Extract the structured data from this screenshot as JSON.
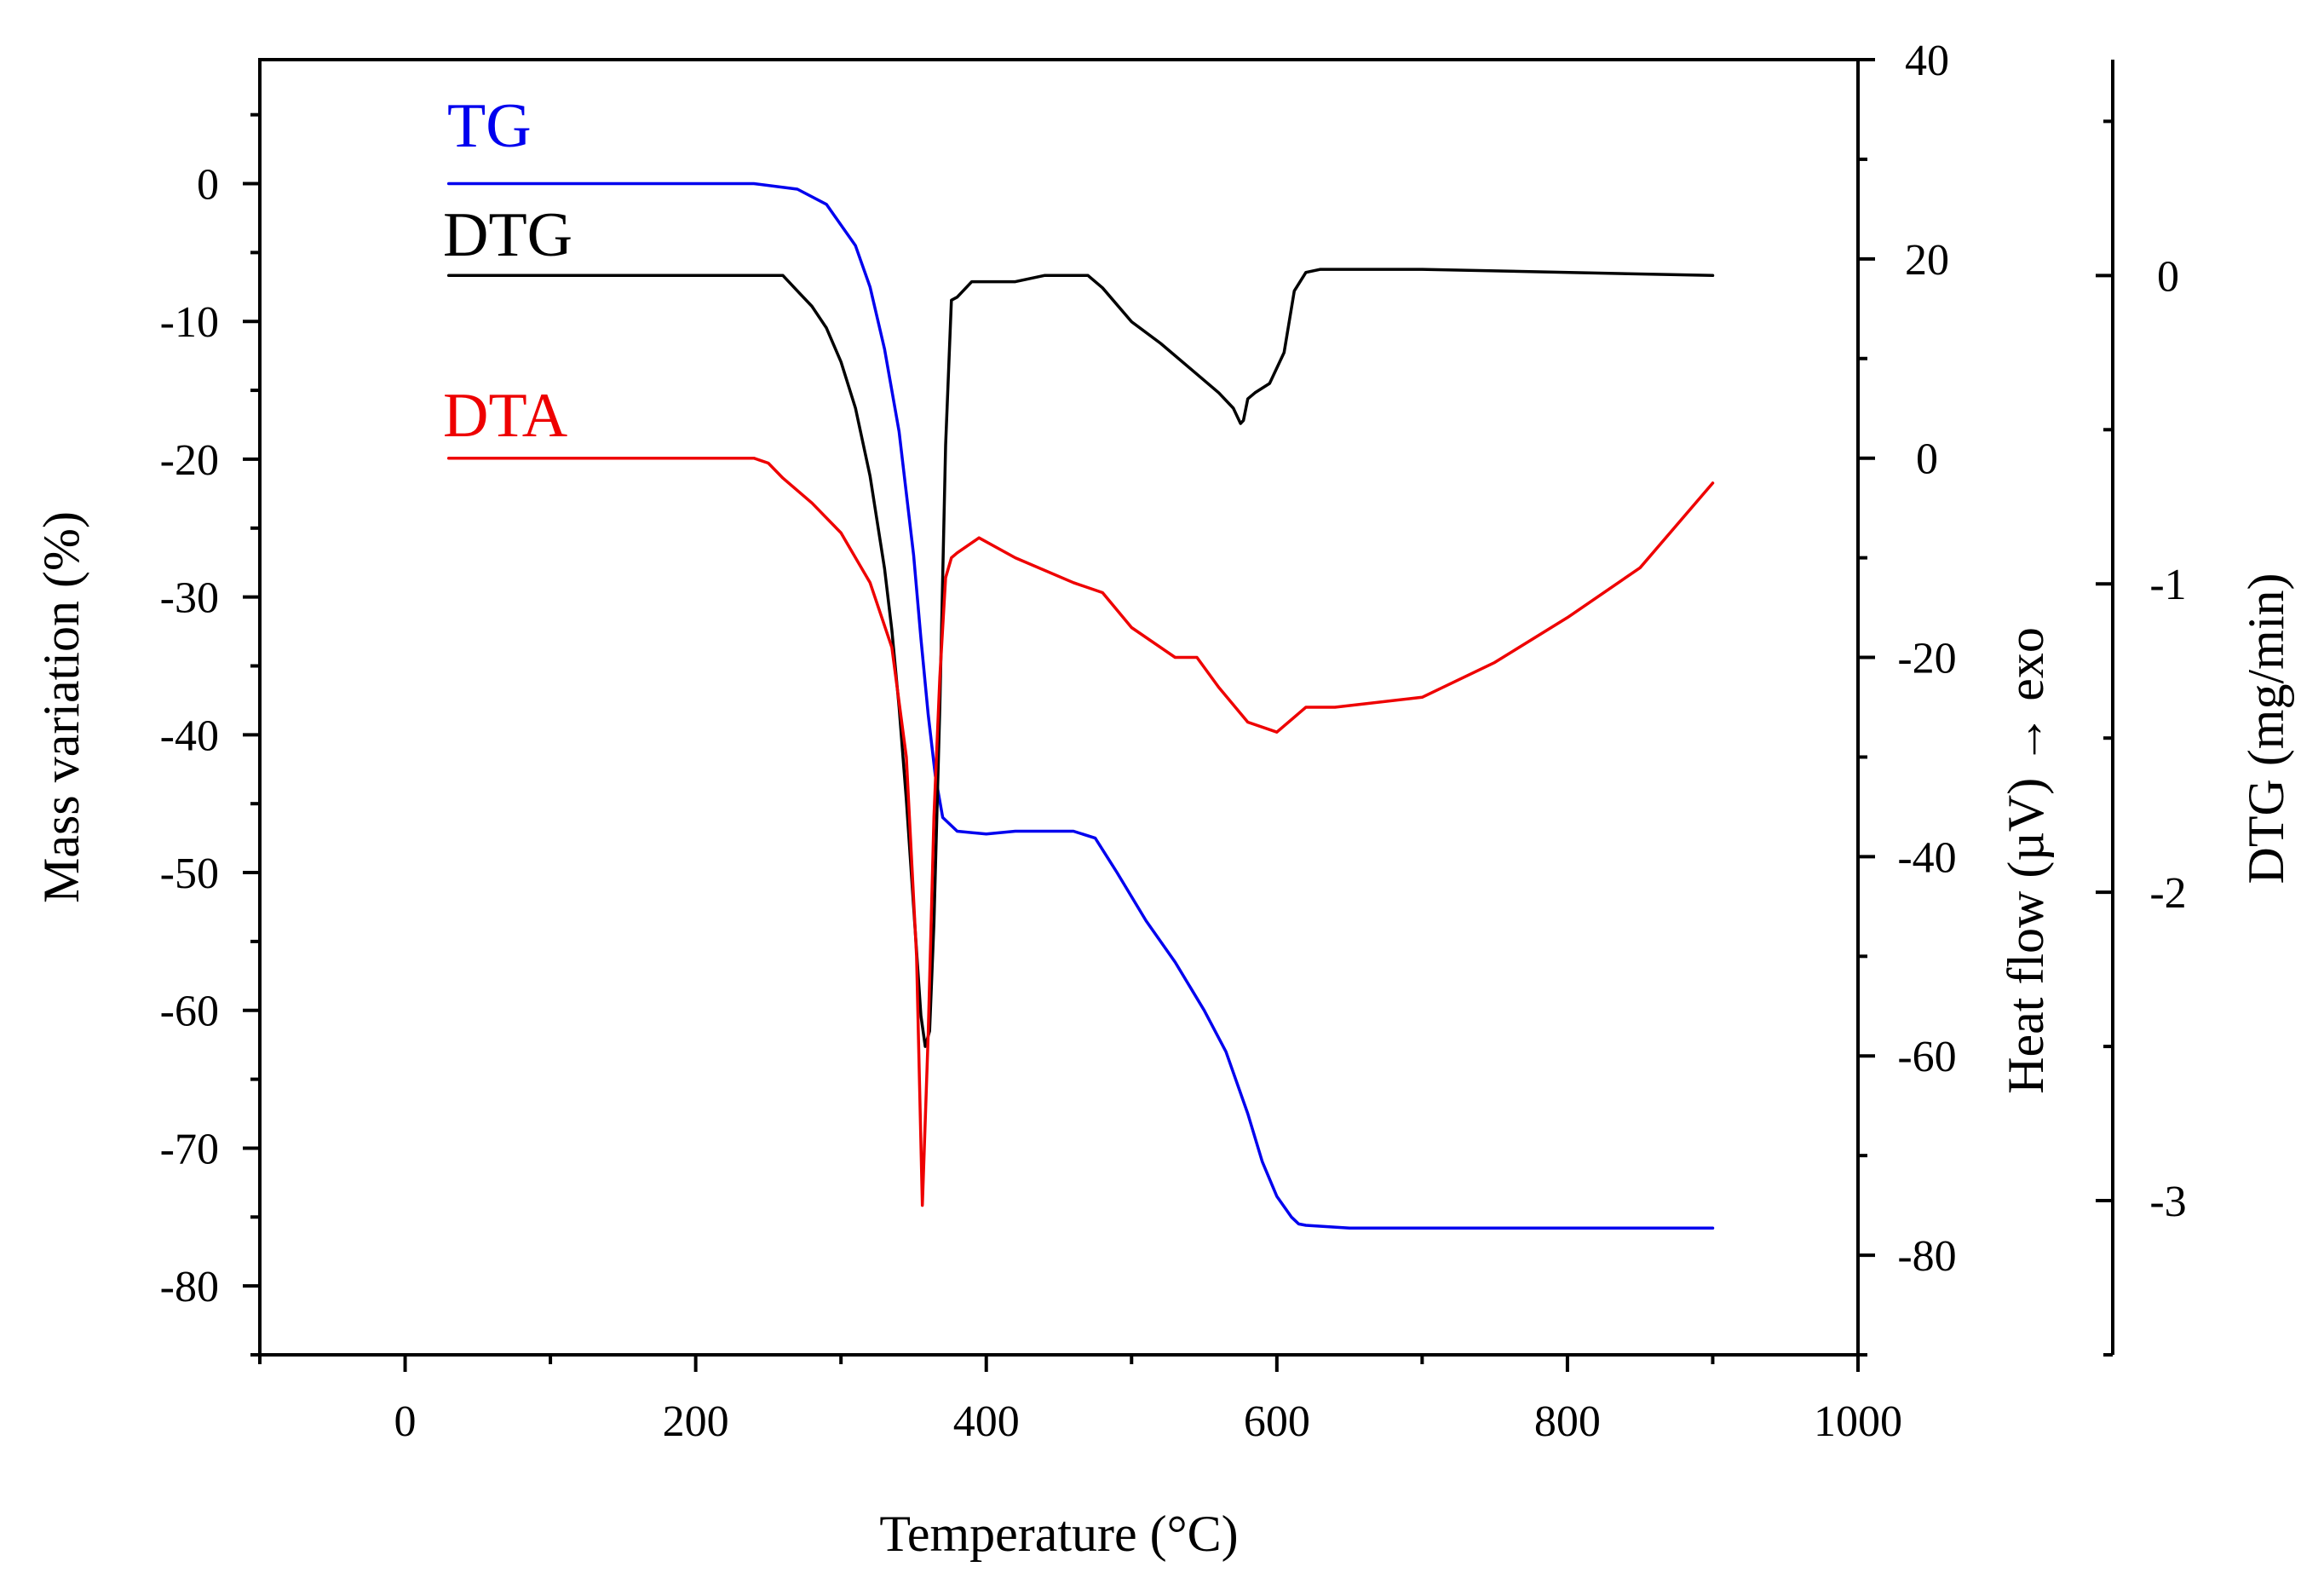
{
  "chart_data": {
    "type": "line",
    "title": "",
    "xlabel": "Temperature (°C)",
    "xlim": [
      -100,
      1000
    ],
    "x_ticks": [
      0,
      200,
      400,
      600,
      800,
      1000
    ],
    "x_minor_step": 100,
    "axes": {
      "mass": {
        "label": "Mass variation (%)",
        "ylim": [
          -85,
          9
        ],
        "ticks": [
          0,
          -10,
          -20,
          -30,
          -40,
          -50,
          -60,
          -70,
          -80
        ],
        "minor_step": 5
      },
      "heat": {
        "label": "Heat flow (µV)   → exo",
        "ylim": [
          -90,
          40
        ],
        "ticks": [
          40,
          20,
          0,
          -20,
          -40,
          -60,
          -80
        ],
        "minor_step": 10
      },
      "dtg": {
        "label": "DTG (mg/min)",
        "ylim": [
          -3.5,
          0.7
        ],
        "ticks": [
          0,
          -1,
          -2,
          -3
        ],
        "minor_step": 0.5
      }
    },
    "series": [
      {
        "name": "TG",
        "label": "TG",
        "axis": "mass",
        "color": "#0000ee",
        "x": [
          30,
          200,
          240,
          270,
          290,
          310,
          320,
          330,
          340,
          350,
          355,
          360,
          365,
          370,
          380,
          400,
          420,
          460,
          475,
          490,
          510,
          530,
          550,
          565,
          580,
          590,
          600,
          610,
          615,
          620,
          650,
          700,
          900
        ],
        "y": [
          0,
          0,
          0,
          -0.4,
          -1.5,
          -4.5,
          -7.5,
          -12,
          -18,
          -27,
          -33,
          -38.5,
          -43,
          -46,
          -47,
          -47.2,
          -47,
          -47,
          -47.5,
          -50,
          -53.5,
          -56.5,
          -60,
          -63,
          -67.5,
          -71,
          -73.5,
          -75,
          -75.5,
          -75.6,
          -75.8,
          -75.8,
          -75.8
        ]
      },
      {
        "name": "DTG",
        "label": "DTG",
        "axis": "dtg",
        "color": "#000000",
        "x": [
          30,
          260,
          270,
          280,
          290,
          300,
          310,
          320,
          330,
          335,
          340,
          345,
          350,
          355,
          358,
          361,
          364,
          368,
          372,
          376,
          380,
          390,
          420,
          440,
          470,
          480,
          500,
          520,
          540,
          560,
          570,
          575,
          577,
          580,
          585,
          595,
          605,
          612,
          620,
          630,
          650,
          700,
          900
        ],
        "y": [
          0,
          0,
          -0.05,
          -0.1,
          -0.17,
          -0.28,
          -0.43,
          -0.65,
          -0.95,
          -1.15,
          -1.4,
          -1.7,
          -2.05,
          -2.4,
          -2.5,
          -2.45,
          -2.1,
          -1.4,
          -0.55,
          -0.08,
          -0.07,
          -0.02,
          -0.02,
          0,
          0,
          -0.04,
          -0.15,
          -0.22,
          -0.3,
          -0.38,
          -0.43,
          -0.48,
          -0.47,
          -0.4,
          -0.38,
          -0.35,
          -0.25,
          -0.05,
          0.01,
          0.02,
          0.02,
          0.02,
          0
        ]
      },
      {
        "name": "DTA",
        "label": "DTA",
        "axis": "heat",
        "color": "#ee0000",
        "x": [
          30,
          240,
          250,
          260,
          280,
          300,
          320,
          335,
          345,
          352,
          356,
          360,
          364,
          368,
          372,
          376,
          380,
          395,
          420,
          460,
          480,
          500,
          530,
          545,
          560,
          580,
          600,
          620,
          640,
          700,
          750,
          800,
          850,
          900
        ],
        "y": [
          0,
          0,
          -0.5,
          -2,
          -4.5,
          -7.5,
          -12.5,
          -19,
          -30,
          -50,
          -75,
          -58,
          -36,
          -22,
          -12,
          -10,
          -9.5,
          -8,
          -10,
          -12.5,
          -13.5,
          -17,
          -20,
          -20,
          -23,
          -26.5,
          -27.5,
          -25,
          -25,
          -24,
          -20.5,
          -16,
          -11,
          -2.5
        ]
      }
    ]
  }
}
